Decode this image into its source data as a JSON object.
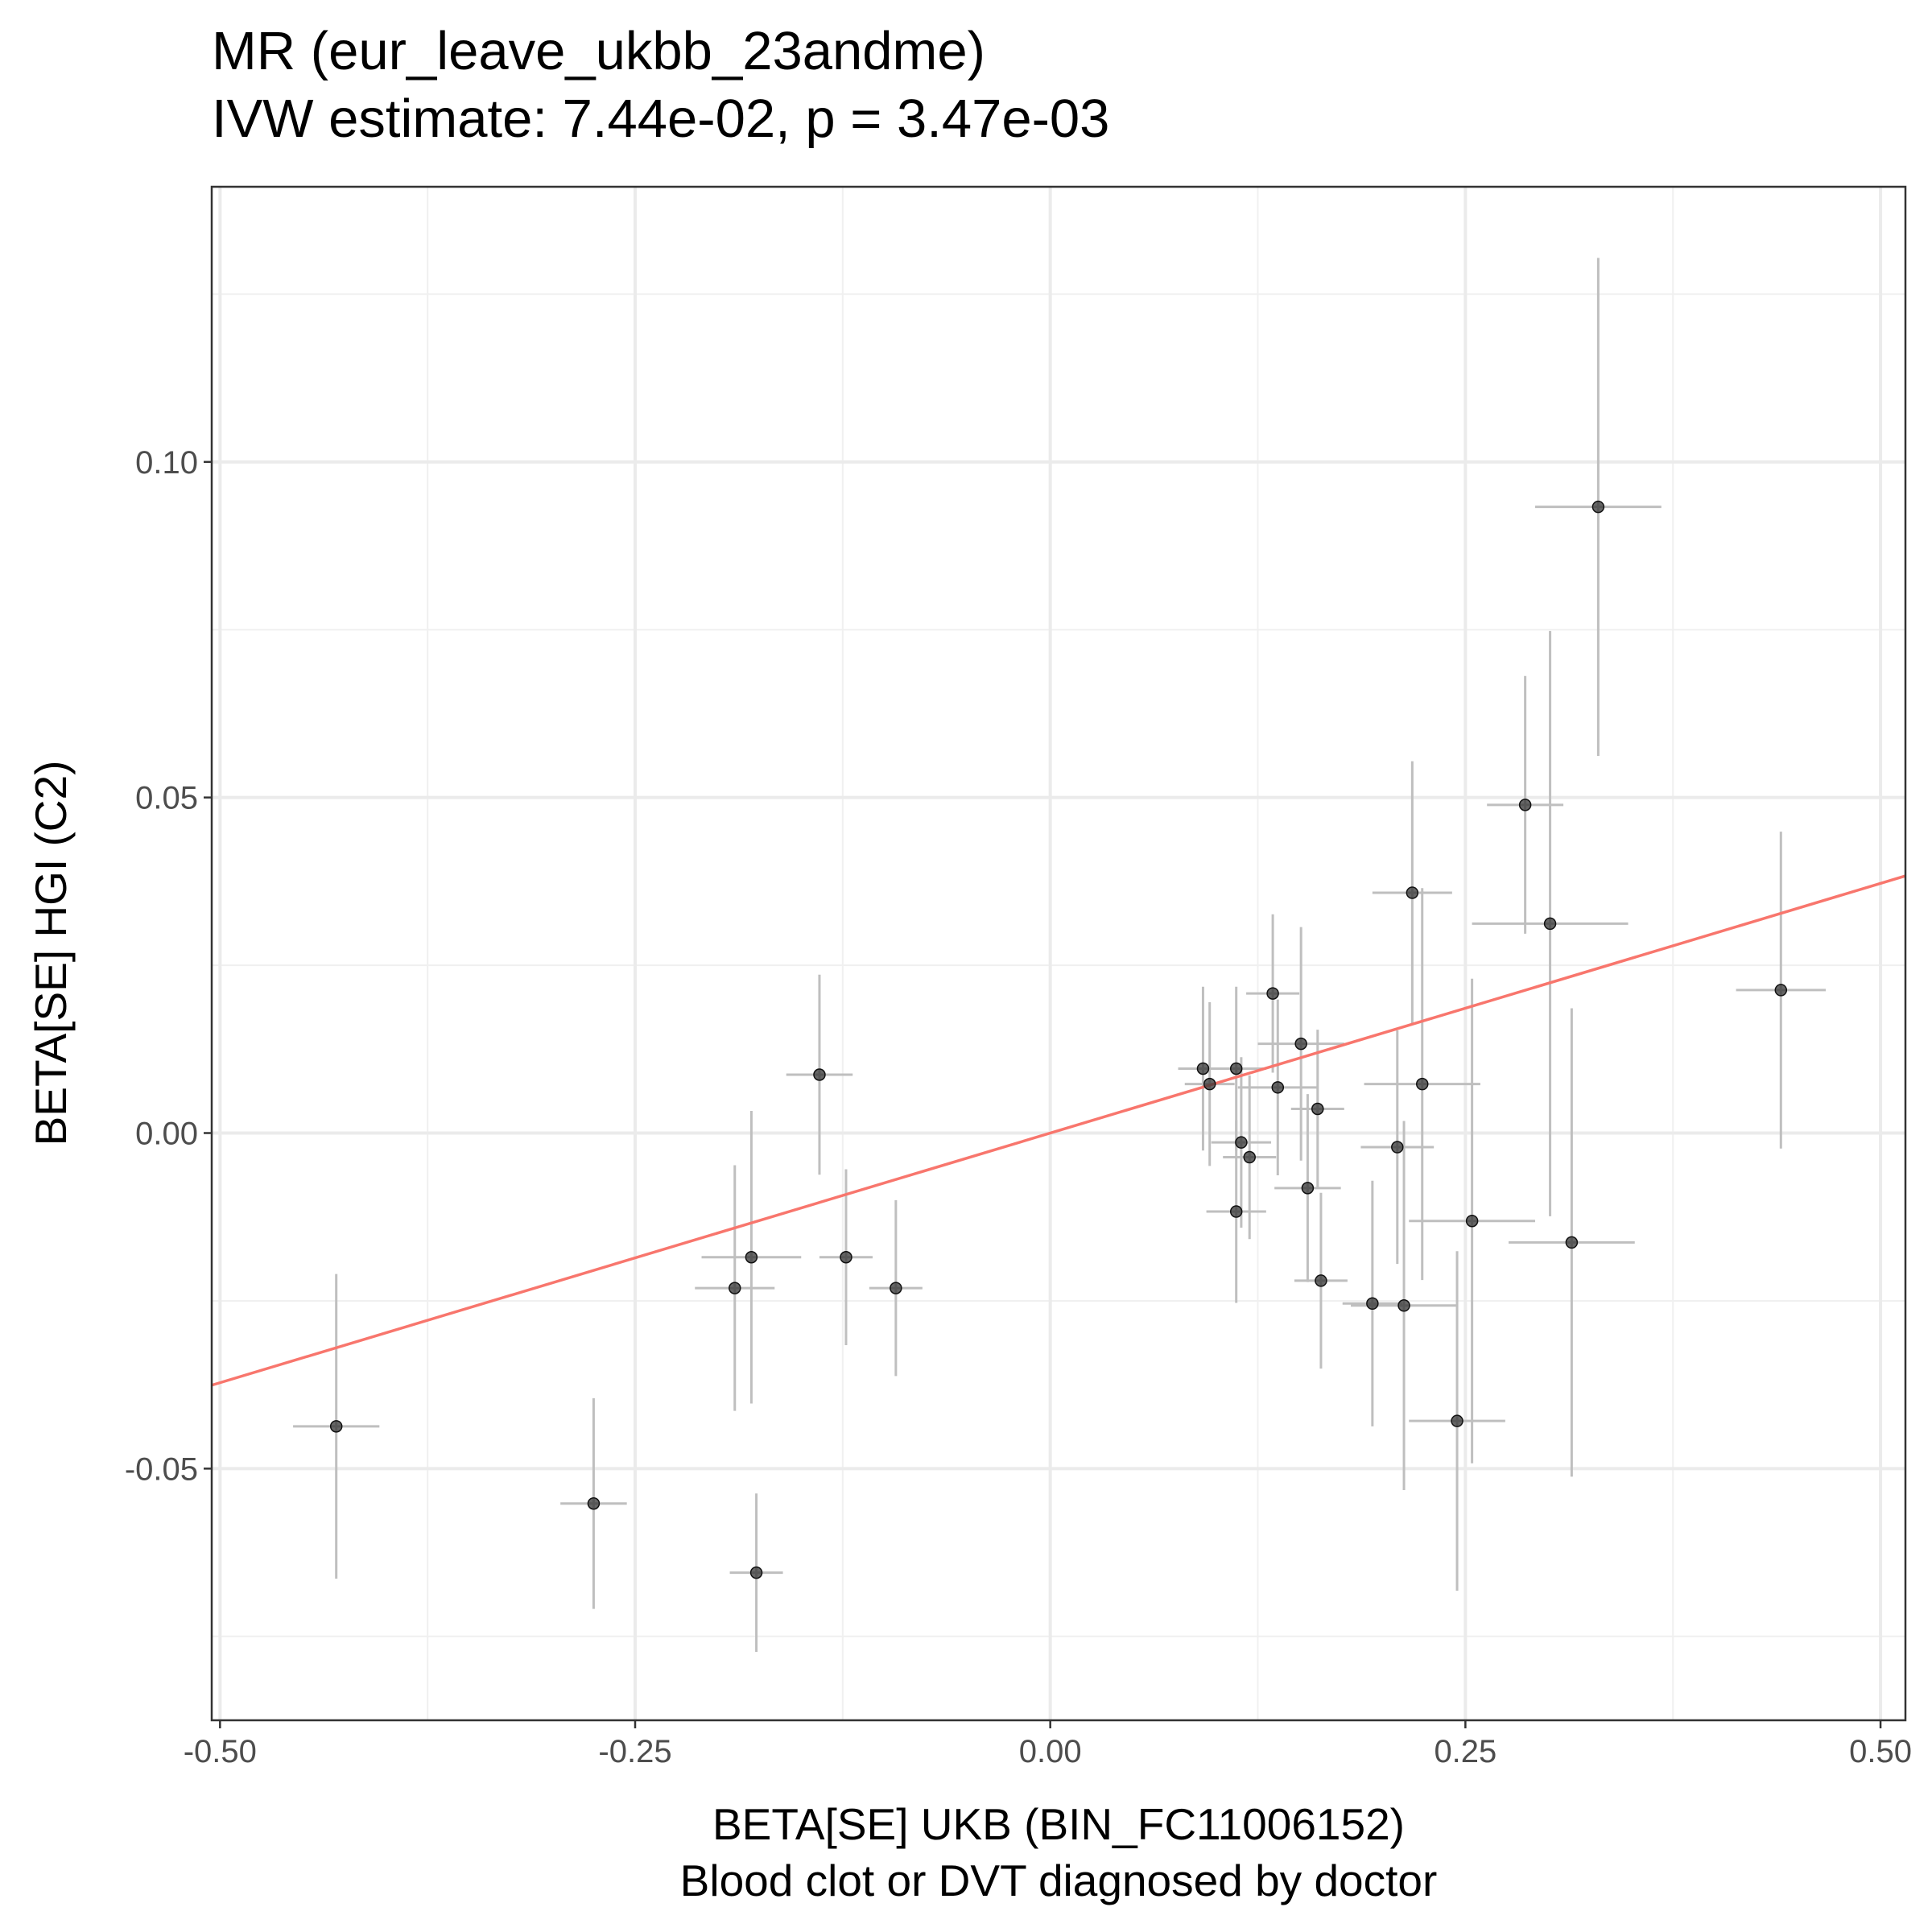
{
  "chart_data": {
    "type": "scatter",
    "title": "MR (eur_leave_ukbb_23andme)",
    "subtitle": "IVW estimate: 7.44e-02, p = 3.47e-03",
    "xlabel": "BETA[SE] UKB (BIN_FC11006152)",
    "xlabel_line2": "Blood clot or DVT diagnosed by doctor",
    "ylabel": "BETA[SE] HGI (C2)",
    "xlim": [
      -0.505,
      0.515
    ],
    "ylim": [
      -0.0875,
      0.141
    ],
    "x_ticks": [
      -0.5,
      -0.25,
      0.0,
      0.25,
      0.5
    ],
    "x_tick_labels": [
      "-0.50",
      "-0.25",
      "0.00",
      "0.25",
      "0.50"
    ],
    "y_ticks": [
      -0.05,
      0.0,
      0.05,
      0.1
    ],
    "y_tick_labels": [
      "-0.05",
      "0.00",
      "0.05",
      "0.10"
    ],
    "grid": true,
    "ivw_slope": 0.0744,
    "line_color": "#f8766d",
    "point_color": "#333333",
    "errorbar_color": "#bfbfbf",
    "points": [
      {
        "x": -0.43,
        "y": -0.0437,
        "x_se": 0.026,
        "y_se": 0.0227
      },
      {
        "x": -0.275,
        "y": -0.0552,
        "x_se": 0.02,
        "y_se": 0.0157
      },
      {
        "x": -0.19,
        "y": -0.0231,
        "x_se": 0.024,
        "y_se": 0.0183
      },
      {
        "x": -0.18,
        "y": -0.0185,
        "x_se": 0.03,
        "y_se": 0.0218
      },
      {
        "x": -0.177,
        "y": -0.0655,
        "x_se": 0.016,
        "y_se": 0.0118
      },
      {
        "x": -0.139,
        "y": 0.0087,
        "x_se": 0.02,
        "y_se": 0.0149
      },
      {
        "x": -0.123,
        "y": -0.0185,
        "x_se": 0.016,
        "y_se": 0.0131
      },
      {
        "x": -0.093,
        "y": -0.0231,
        "x_se": 0.016,
        "y_se": 0.0131
      },
      {
        "x": 0.092,
        "y": 0.0096,
        "x_se": 0.015,
        "y_se": 0.0122
      },
      {
        "x": 0.096,
        "y": 0.0073,
        "x_se": 0.015,
        "y_se": 0.0122
      },
      {
        "x": 0.112,
        "y": 0.0096,
        "x_se": 0.018,
        "y_se": 0.0122
      },
      {
        "x": 0.112,
        "y": -0.0117,
        "x_se": 0.018,
        "y_se": 0.0136
      },
      {
        "x": 0.115,
        "y": -0.0014,
        "x_se": 0.018,
        "y_se": 0.0127
      },
      {
        "x": 0.12,
        "y": -0.0036,
        "x_se": 0.016,
        "y_se": 0.0122
      },
      {
        "x": 0.134,
        "y": 0.0208,
        "x_se": 0.016,
        "y_se": 0.0118
      },
      {
        "x": 0.137,
        "y": 0.0068,
        "x_se": 0.024,
        "y_se": 0.0131
      },
      {
        "x": 0.151,
        "y": 0.0133,
        "x_se": 0.026,
        "y_se": 0.0174
      },
      {
        "x": 0.155,
        "y": -0.0082,
        "x_se": 0.02,
        "y_se": 0.014
      },
      {
        "x": 0.161,
        "y": 0.0036,
        "x_se": 0.016,
        "y_se": 0.0118
      },
      {
        "x": 0.163,
        "y": -0.022,
        "x_se": 0.016,
        "y_se": 0.0131
      },
      {
        "x": 0.194,
        "y": -0.0254,
        "x_se": 0.018,
        "y_se": 0.0183
      },
      {
        "x": 0.209,
        "y": -0.0021,
        "x_se": 0.022,
        "y_se": 0.0174
      },
      {
        "x": 0.213,
        "y": -0.0257,
        "x_se": 0.032,
        "y_se": 0.0275
      },
      {
        "x": 0.218,
        "y": 0.0358,
        "x_se": 0.024,
        "y_se": 0.0196
      },
      {
        "x": 0.224,
        "y": 0.0073,
        "x_se": 0.035,
        "y_se": 0.0292
      },
      {
        "x": 0.245,
        "y": -0.0429,
        "x_se": 0.029,
        "y_se": 0.0253
      },
      {
        "x": 0.254,
        "y": -0.0131,
        "x_se": 0.038,
        "y_se": 0.0361
      },
      {
        "x": 0.286,
        "y": 0.0489,
        "x_se": 0.023,
        "y_se": 0.0192
      },
      {
        "x": 0.301,
        "y": 0.0312,
        "x_se": 0.047,
        "y_se": 0.0436
      },
      {
        "x": 0.314,
        "y": -0.0163,
        "x_se": 0.038,
        "y_se": 0.0349
      },
      {
        "x": 0.33,
        "y": 0.0933,
        "x_se": 0.038,
        "y_se": 0.0371
      },
      {
        "x": 0.44,
        "y": 0.0213,
        "x_se": 0.027,
        "y_se": 0.0236
      }
    ]
  }
}
